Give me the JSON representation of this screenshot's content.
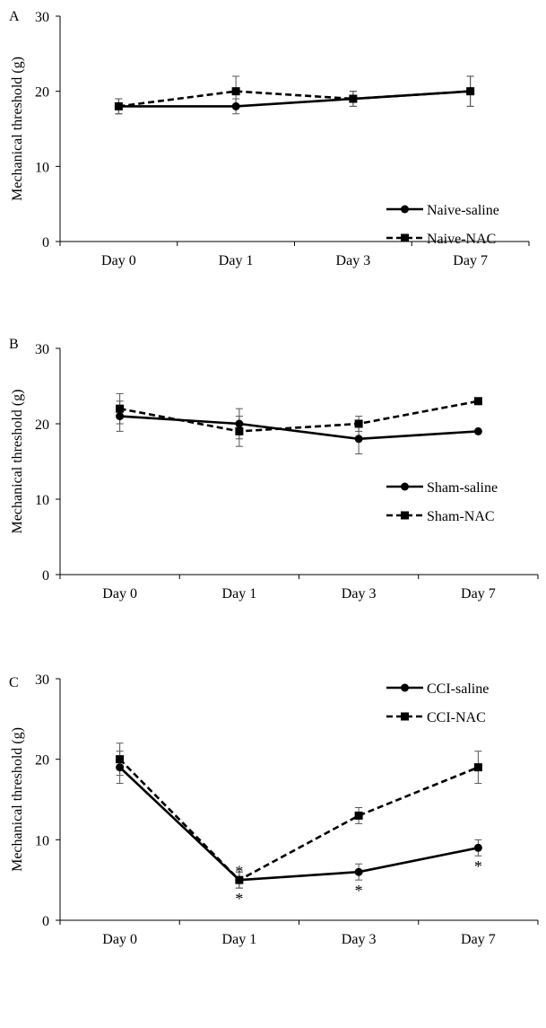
{
  "chart_data": [
    {
      "panel_label": "A",
      "type": "line",
      "ylabel": "Mechanical threshold (g)",
      "categories": [
        "Day 0",
        "Day 1",
        "Day 3",
        "Day 7"
      ],
      "ylim": [
        0,
        30
      ],
      "yticks": [
        0,
        10,
        20,
        30
      ],
      "legend_position": "lower-right",
      "series": [
        {
          "name": "Naive-saline",
          "marker": "circle",
          "dash": "solid",
          "values": [
            18,
            18,
            19,
            20
          ],
          "errors": [
            1,
            1,
            1,
            2
          ]
        },
        {
          "name": "Naive-NAC",
          "marker": "square",
          "dash": "dashed",
          "values": [
            18,
            20,
            19,
            20
          ],
          "errors": [
            1,
            2,
            1,
            2
          ]
        }
      ],
      "annotations": []
    },
    {
      "panel_label": "B",
      "type": "line",
      "ylabel": "Mechanical threshold (g)",
      "categories": [
        "Day 0",
        "Day 1",
        "Day 3",
        "Day 7"
      ],
      "ylim": [
        0,
        30
      ],
      "yticks": [
        0,
        10,
        20,
        30
      ],
      "legend_position": "lower-right",
      "series": [
        {
          "name": "Sham-saline",
          "marker": "circle",
          "dash": "solid",
          "values": [
            21,
            20,
            18,
            19
          ],
          "errors": [
            2,
            2,
            2,
            0
          ]
        },
        {
          "name": "Sham-NAC",
          "marker": "square",
          "dash": "dashed",
          "values": [
            22,
            19,
            20,
            23
          ],
          "errors": [
            2,
            2,
            1,
            0
          ]
        }
      ],
      "annotations": []
    },
    {
      "panel_label": "C",
      "type": "line",
      "ylabel": "Mechanical threshold (g)",
      "categories": [
        "Day 0",
        "Day 1",
        "Day 3",
        "Day 7"
      ],
      "ylim": [
        0,
        30
      ],
      "yticks": [
        0,
        10,
        20,
        30
      ],
      "legend_position": "top-right",
      "series": [
        {
          "name": "CCI-saline",
          "marker": "circle",
          "dash": "solid",
          "values": [
            19,
            5,
            6,
            9
          ],
          "errors": [
            2,
            1,
            1,
            1
          ]
        },
        {
          "name": "CCI-NAC",
          "marker": "square",
          "dash": "dashed",
          "values": [
            20,
            5,
            13,
            19
          ],
          "errors": [
            2,
            1,
            1,
            2
          ]
        }
      ],
      "annotations": [
        {
          "text": "*",
          "category": "Day 1",
          "value": 6.3
        },
        {
          "text": "*",
          "category": "Day 1",
          "value": 2.9
        },
        {
          "text": "*",
          "category": "Day 3",
          "value": 3.9
        },
        {
          "text": "*",
          "category": "Day 7",
          "value": 6.9
        }
      ]
    }
  ]
}
